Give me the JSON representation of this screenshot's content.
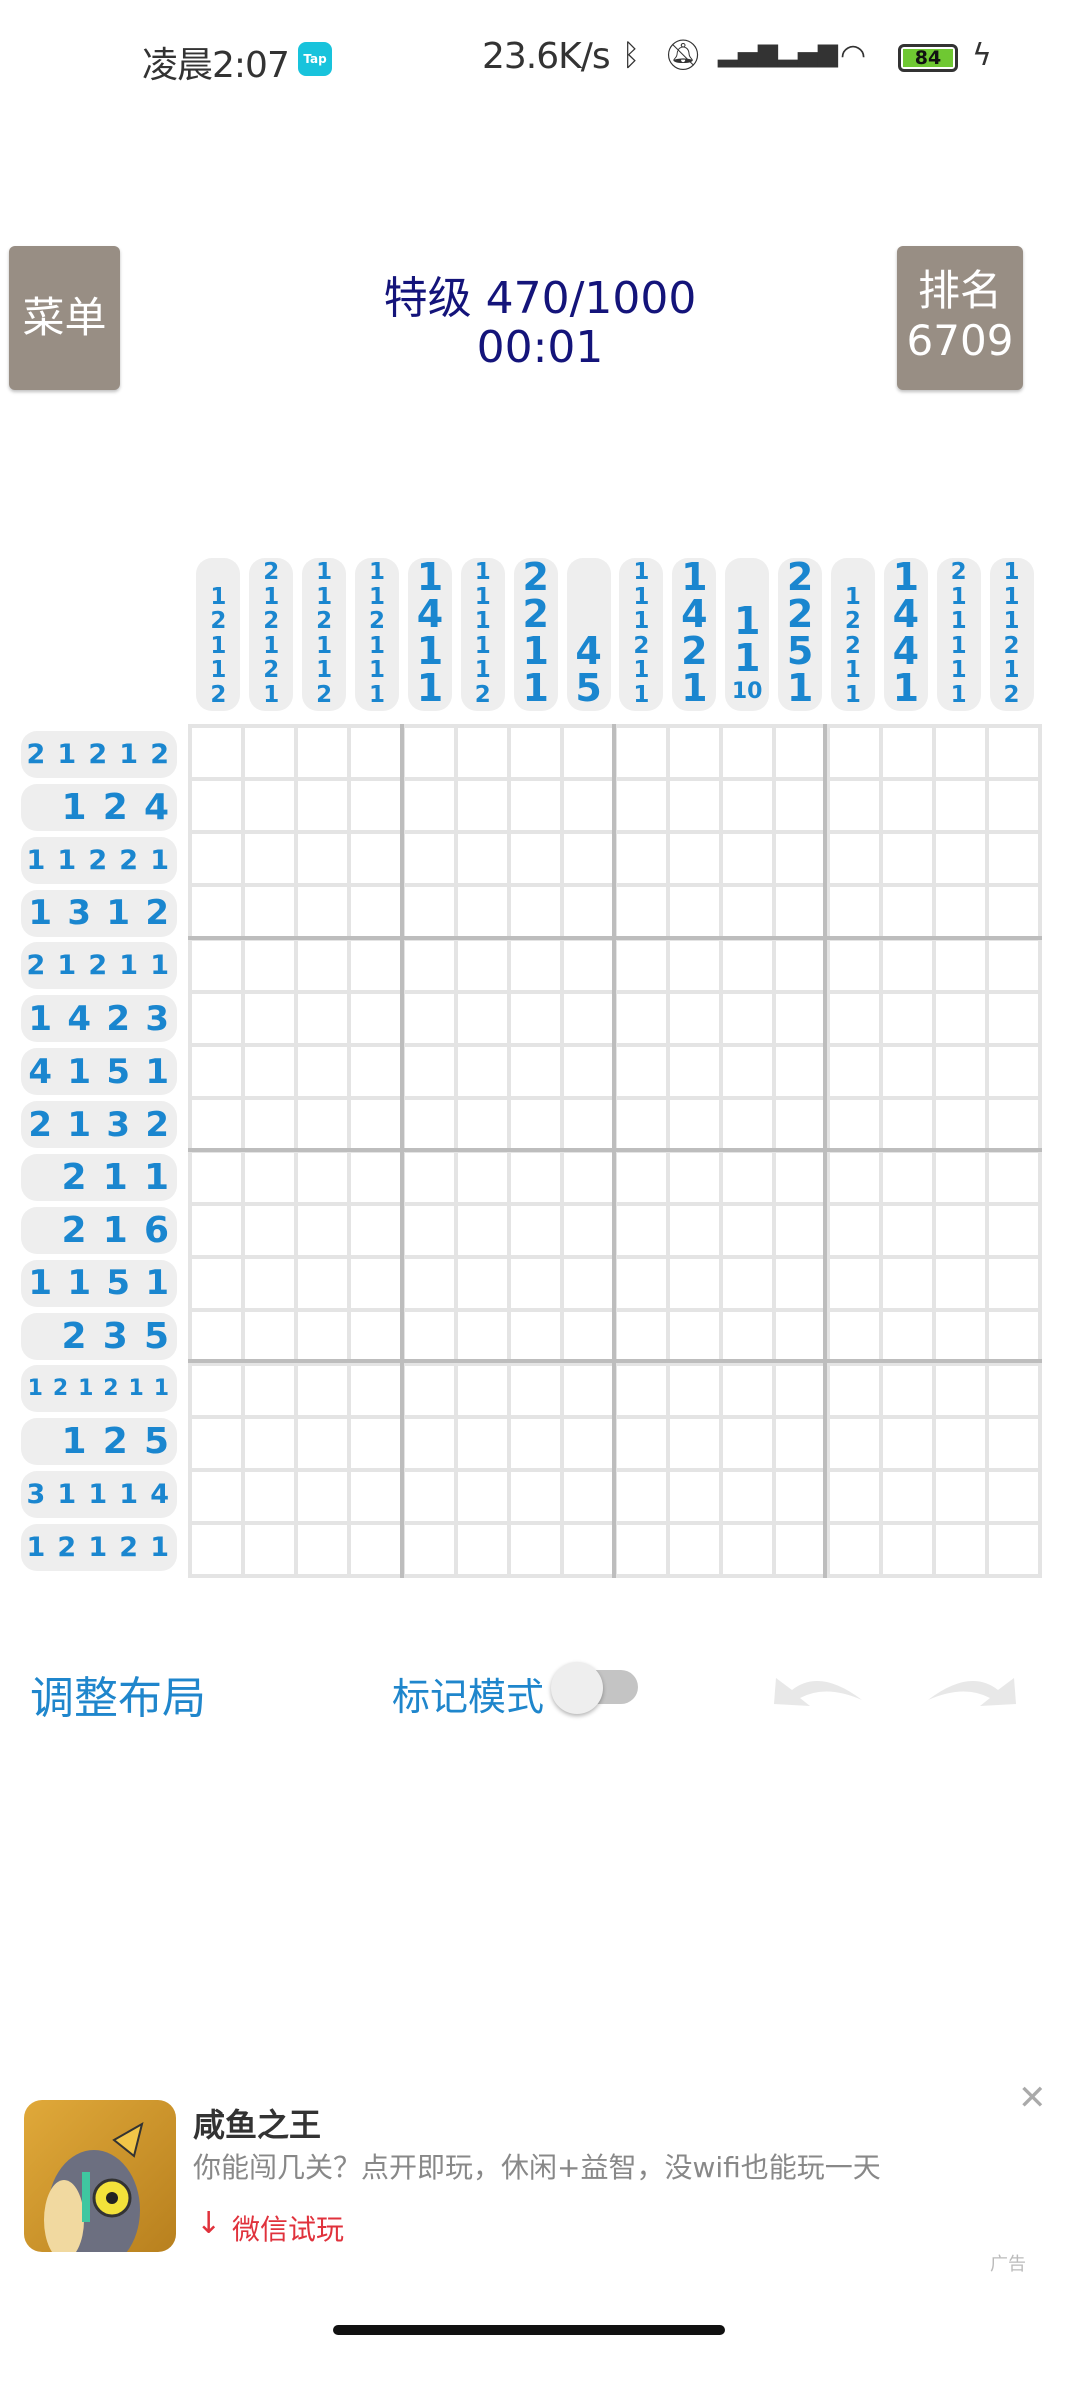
{
  "status_bar": {
    "time": "凌晨2:07",
    "app_badge": "Tap",
    "net_speed": "23.6K/s",
    "battery": "84",
    "icons": [
      "bluetooth-icon",
      "mute-icon",
      "signal-hd-icon",
      "signal-hd-icon",
      "wifi-icon",
      "battery-icon",
      "charging-icon"
    ]
  },
  "header": {
    "menu_label": "菜单",
    "level_title": "特级 470/1000",
    "timer": "00:01",
    "rank_label": "排名",
    "rank_value": "6709"
  },
  "puzzle": {
    "size": 16,
    "column_clues": [
      [
        1,
        2,
        1,
        1,
        2
      ],
      [
        2,
        1,
        2,
        1,
        2,
        1
      ],
      [
        1,
        1,
        2,
        1,
        1,
        2
      ],
      [
        1,
        1,
        2,
        1,
        1,
        1
      ],
      [
        1,
        4,
        1,
        1
      ],
      [
        1,
        1,
        1,
        1,
        1,
        2
      ],
      [
        2,
        2,
        1,
        1
      ],
      [
        4,
        5
      ],
      [
        1,
        1,
        1,
        2,
        1,
        1
      ],
      [
        1,
        4,
        2,
        1
      ],
      [
        1,
        1,
        10
      ],
      [
        2,
        2,
        5,
        1
      ],
      [
        1,
        2,
        2,
        1,
        1
      ],
      [
        1,
        4,
        4,
        1
      ],
      [
        2,
        1,
        1,
        1,
        1,
        1
      ],
      [
        1,
        1,
        1,
        2,
        1,
        2
      ]
    ],
    "row_clues": [
      [
        2,
        1,
        2,
        1,
        2
      ],
      [
        1,
        2,
        4
      ],
      [
        1,
        1,
        2,
        2,
        1
      ],
      [
        1,
        3,
        1,
        2
      ],
      [
        2,
        1,
        2,
        1,
        1
      ],
      [
        1,
        4,
        2,
        3
      ],
      [
        4,
        1,
        5,
        1
      ],
      [
        2,
        1,
        3,
        2
      ],
      [
        2,
        1,
        1
      ],
      [
        2,
        1,
        6
      ],
      [
        1,
        1,
        5,
        1
      ],
      [
        2,
        3,
        5
      ],
      [
        1,
        2,
        1,
        2,
        1,
        1
      ],
      [
        1,
        2,
        5
      ],
      [
        3,
        1,
        1,
        1,
        4
      ],
      [
        1,
        2,
        1,
        2,
        1
      ]
    ],
    "clue_color": "#1a86cf"
  },
  "controls": {
    "adjust_layout": "调整布局",
    "mark_mode": "标记模式",
    "mark_mode_on": false
  },
  "ad": {
    "title": "咸鱼之王",
    "description": "你能闯几关？点开即玩，休闲+益智，没wifi也能玩一天",
    "cta": "微信试玩",
    "label": "广告"
  }
}
